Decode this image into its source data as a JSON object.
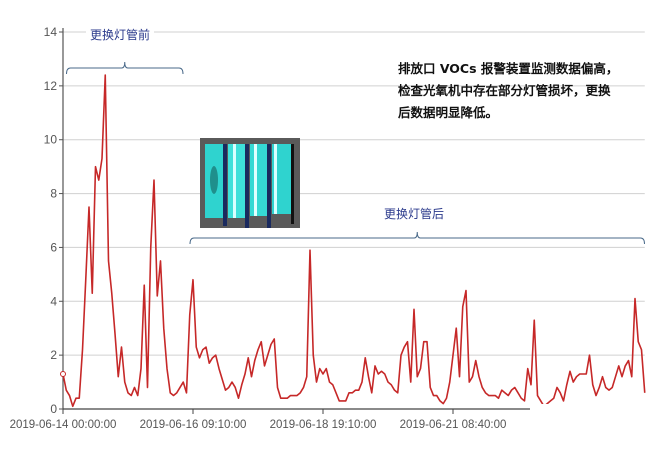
{
  "chart_data": {
    "type": "line",
    "title": "",
    "xlabel": "",
    "ylabel": "",
    "ylim": [
      0,
      14
    ],
    "yticks": [
      0,
      2,
      4,
      6,
      8,
      10,
      12,
      14
    ],
    "grid": true,
    "x_ticks": [
      {
        "index": 0,
        "label": "2019-06-14 00:00:00"
      },
      {
        "index": 40,
        "label": "2019-06-16 09:10:00"
      },
      {
        "index": 80,
        "label": "2019-06-18 19:10:00"
      },
      {
        "index": 120,
        "label": "2019-06-21 08:40:00"
      }
    ],
    "series": [
      {
        "color": "#c62828",
        "values": [
          1.3,
          0.7,
          0.5,
          0.1,
          0.4,
          0.4,
          2.2,
          4.8,
          7.5,
          4.3,
          9.0,
          8.5,
          9.3,
          12.4,
          5.5,
          4.3,
          2.8,
          1.2,
          2.3,
          1.0,
          0.6,
          0.5,
          0.8,
          0.5,
          1.5,
          4.6,
          0.8,
          6.0,
          8.5,
          4.2,
          5.5,
          3.0,
          1.5,
          0.6,
          0.5,
          0.6,
          0.8,
          1.0,
          0.6,
          3.5,
          4.8,
          2.3,
          1.9,
          2.2,
          2.3,
          1.7,
          1.9,
          2.0,
          1.5,
          1.1,
          0.7,
          0.8,
          1.0,
          0.8,
          0.4,
          0.9,
          1.3,
          1.9,
          1.2,
          1.8,
          2.2,
          2.5,
          1.6,
          2.0,
          2.4,
          2.6,
          0.8,
          0.4,
          0.4,
          0.4,
          0.5,
          0.5,
          0.5,
          0.6,
          0.8,
          1.2,
          5.9,
          2.0,
          1.0,
          1.5,
          1.3,
          1.5,
          1.0,
          0.9,
          0.6,
          0.3,
          0.3,
          0.3,
          0.6,
          0.6,
          0.7,
          0.7,
          1.0,
          1.9,
          1.2,
          0.6,
          1.6,
          1.3,
          1.4,
          1.3,
          1.0,
          0.9,
          0.7,
          0.6,
          2.0,
          2.3,
          2.5,
          1.0,
          3.7,
          1.2,
          1.5,
          2.5,
          2.5,
          0.8,
          0.5,
          0.5,
          0.3,
          0.2,
          0.4,
          1.0,
          2.0,
          3.0,
          1.2,
          3.8,
          4.4,
          1.0,
          1.2,
          1.8,
          1.2,
          0.8,
          0.6,
          0.5,
          0.5,
          0.5,
          0.4,
          0.7,
          0.6,
          0.5,
          0.7,
          0.8,
          0.6,
          0.4,
          0.3,
          1.5,
          0.9,
          3.3,
          0.5,
          0.3,
          0.1,
          0.2,
          0.3,
          0.4,
          0.8,
          0.6,
          0.3,
          0.9,
          1.4,
          1.0,
          1.2,
          1.3,
          1.3,
          1.3,
          2.0,
          0.9,
          0.5,
          0.8,
          1.2,
          0.8,
          0.7,
          0.8,
          1.2,
          1.6,
          1.2,
          1.6,
          1.8,
          1.2,
          4.1,
          2.5,
          2.2,
          0.6
        ]
      }
    ],
    "annotations": [
      {
        "label": "更换灯管前",
        "from_index": 2,
        "to_index": 36
      },
      {
        "label": "更换灯管后",
        "from_index": 40,
        "to_index": 178
      }
    ]
  },
  "note": {
    "lines": [
      "排放口 VOCs 报警装置监测数据偏高，",
      "检查光氧机中存在部分灯管损坏，更换",
      "后数据明显降低。"
    ]
  },
  "photo": {
    "subject": "uv-lamp-tubes-photo",
    "colors": {
      "frame": "#5a5a5a",
      "panel": "#2fd3cf",
      "divider": "#1a2a5e"
    }
  }
}
